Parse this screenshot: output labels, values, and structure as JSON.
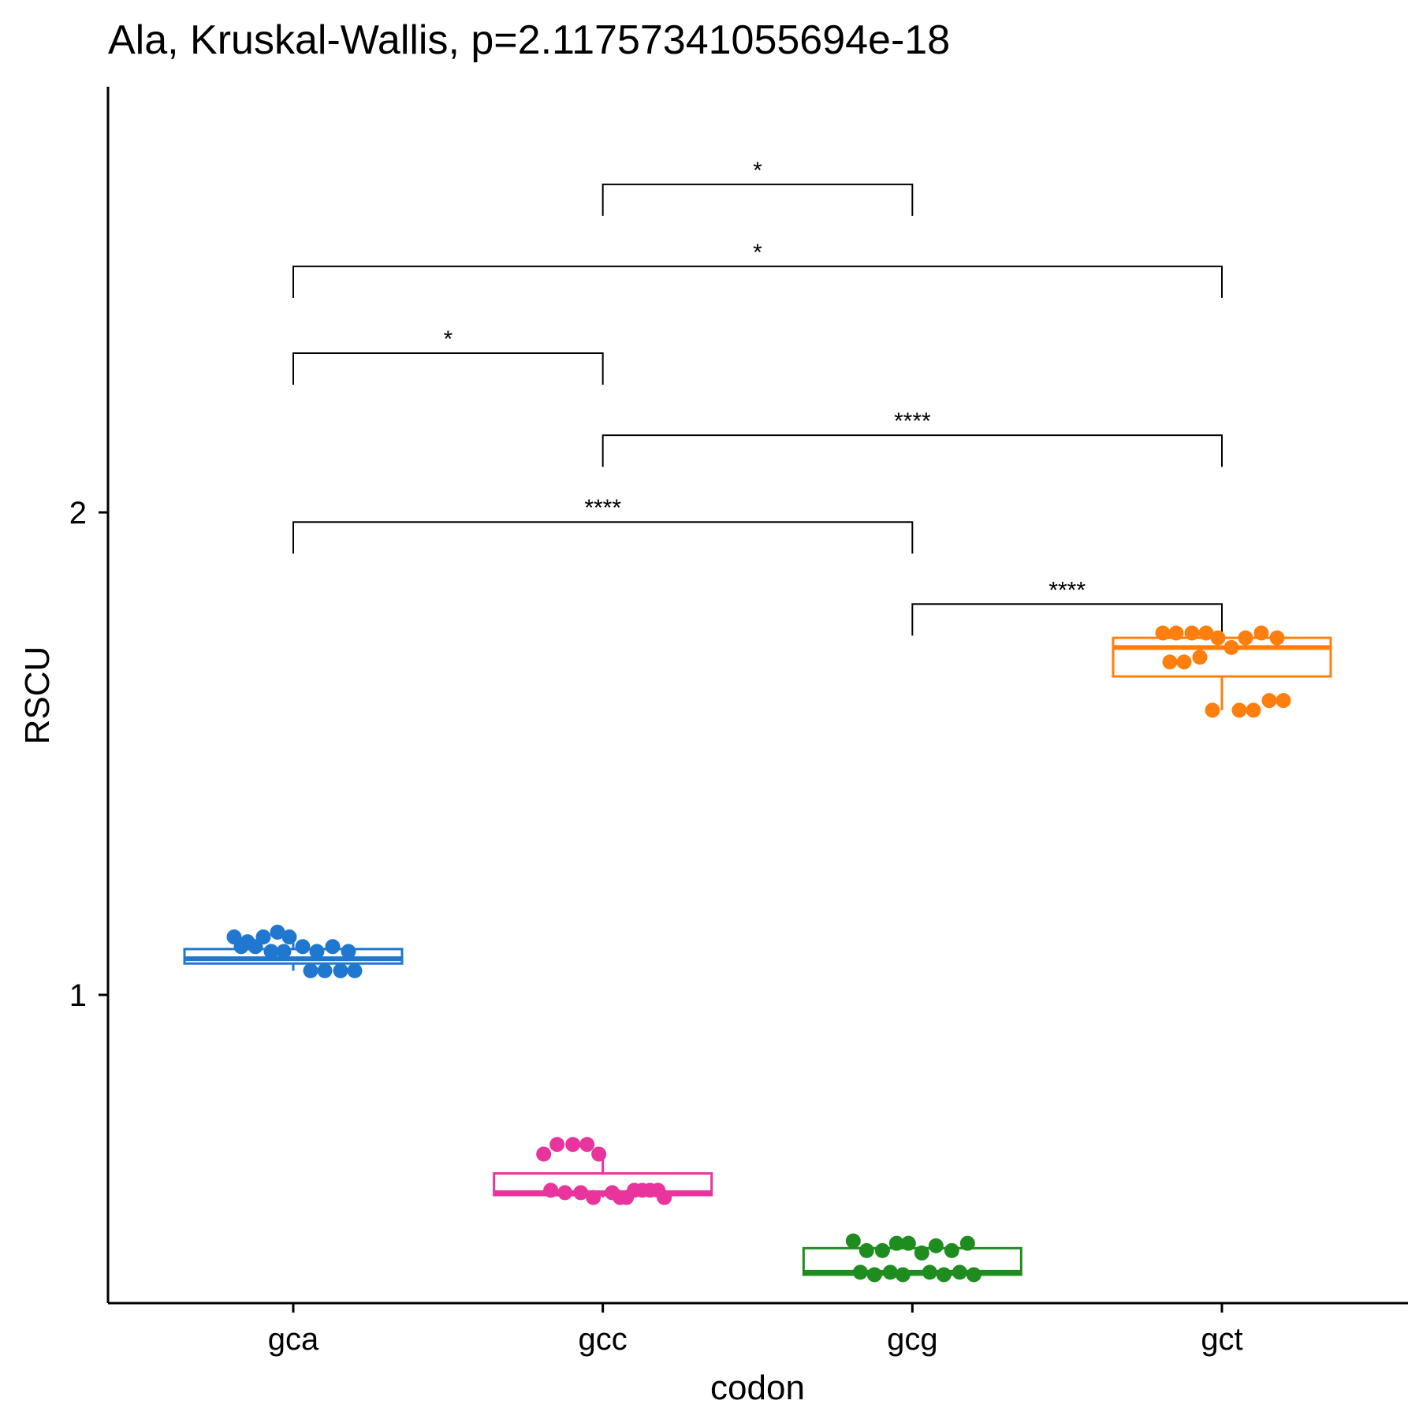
{
  "chart_data": {
    "type": "box",
    "title": "Ala, Kruskal-Wallis, p=2.11757341055694e-18",
    "xlabel": "codon",
    "ylabel": "RSCU",
    "categories": [
      "gca",
      "gcc",
      "gcg",
      "gct"
    ],
    "yticks": [
      1,
      2
    ],
    "ylim": [
      0.36,
      2.88
    ],
    "grid": false,
    "legend": "none",
    "colors": [
      "#1f77d0",
      "#e8349c",
      "#1f8c1f",
      "#ff7f0e"
    ],
    "boxes": [
      {
        "category": "gca",
        "whisker_low": 1.05,
        "q1": 1.065,
        "median": 1.075,
        "q3": 1.095,
        "whisker_high": 1.11,
        "points": [
          1.12,
          1.11,
          1.12,
          1.13,
          1.12,
          1.1,
          1.09,
          1.1,
          1.09,
          1.1,
          1.1,
          1.09,
          1.09,
          1.05,
          1.05,
          1.05,
          1.05
        ]
      },
      {
        "category": "gcc",
        "whisker_low": 0.58,
        "q1": 0.585,
        "median": 0.59,
        "q3": 0.63,
        "whisker_high": 0.68,
        "points": [
          0.67,
          0.69,
          0.69,
          0.69,
          0.67,
          0.59,
          0.58,
          0.595,
          0.595,
          0.595,
          0.59,
          0.59,
          0.58,
          0.58,
          0.595,
          0.595,
          0.58
        ]
      },
      {
        "category": "gcg",
        "whisker_low": 0.42,
        "q1": 0.42,
        "median": 0.425,
        "q3": 0.475,
        "whisker_high": 0.49,
        "points": [
          0.49,
          0.47,
          0.47,
          0.485,
          0.485,
          0.465,
          0.48,
          0.47,
          0.485,
          0.425,
          0.42,
          0.425,
          0.42,
          0.425,
          0.42,
          0.425,
          0.42
        ]
      },
      {
        "category": "gct",
        "whisker_low": 1.59,
        "q1": 1.66,
        "median": 1.72,
        "q3": 1.74,
        "whisker_high": 1.745,
        "points": [
          1.75,
          1.75,
          1.75,
          1.75,
          1.74,
          1.72,
          1.74,
          1.75,
          1.74,
          1.69,
          1.69,
          1.7,
          1.59,
          1.59,
          1.59,
          1.61,
          1.61
        ]
      }
    ],
    "comparisons": [
      {
        "from": "gcg",
        "to": "gct",
        "y": 1.81,
        "label": "****"
      },
      {
        "from": "gca",
        "to": "gcg",
        "y": 1.98,
        "label": "****"
      },
      {
        "from": "gcc",
        "to": "gct",
        "y": 2.16,
        "label": "****"
      },
      {
        "from": "gca",
        "to": "gcc",
        "y": 2.33,
        "label": "*"
      },
      {
        "from": "gca",
        "to": "gct",
        "y": 2.51,
        "label": "*"
      },
      {
        "from": "gcc",
        "to": "gcg",
        "y": 2.68,
        "label": "*"
      }
    ]
  }
}
